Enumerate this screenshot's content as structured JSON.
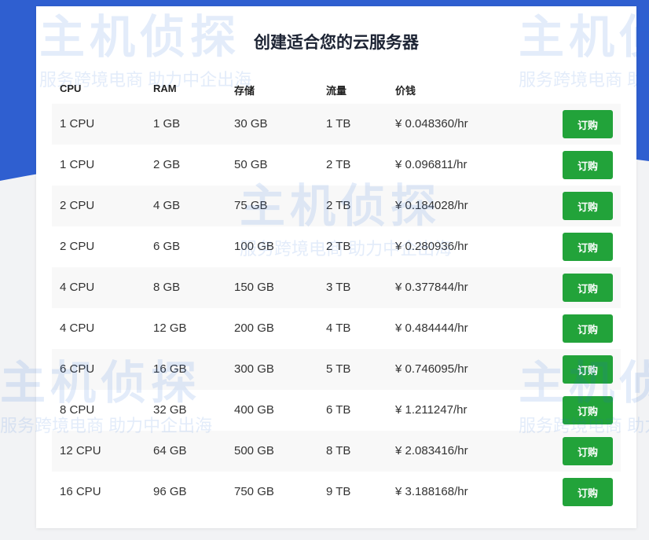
{
  "page": {
    "title": "创建适合您的云服务器"
  },
  "watermark": {
    "brand": "主机侦探",
    "slogan": "服务跨境电商 助力中企出海"
  },
  "colors": {
    "header_bg": "#2f5fd0",
    "button": "#22a33a",
    "row_alt": "#f8f8f8"
  },
  "table": {
    "headers": [
      "CPU",
      "RAM",
      "存储",
      "流量",
      "价钱"
    ],
    "rows": [
      {
        "cpu": "1 CPU",
        "ram": "1 GB",
        "storage": "30 GB",
        "traffic": "1 TB",
        "price": "¥ 0.048360/hr",
        "action": "订购"
      },
      {
        "cpu": "1 CPU",
        "ram": "2 GB",
        "storage": "50 GB",
        "traffic": "2 TB",
        "price": "¥ 0.096811/hr",
        "action": "订购"
      },
      {
        "cpu": "2 CPU",
        "ram": "4 GB",
        "storage": "75 GB",
        "traffic": "2 TB",
        "price": "¥ 0.184028/hr",
        "action": "订购"
      },
      {
        "cpu": "2 CPU",
        "ram": "6 GB",
        "storage": "100 GB",
        "traffic": "2 TB",
        "price": "¥ 0.280936/hr",
        "action": "订购"
      },
      {
        "cpu": "4 CPU",
        "ram": "8 GB",
        "storage": "150 GB",
        "traffic": "3 TB",
        "price": "¥ 0.377844/hr",
        "action": "订购"
      },
      {
        "cpu": "4 CPU",
        "ram": "12 GB",
        "storage": "200 GB",
        "traffic": "4 TB",
        "price": "¥ 0.484444/hr",
        "action": "订购"
      },
      {
        "cpu": "6 CPU",
        "ram": "16 GB",
        "storage": "300 GB",
        "traffic": "5 TB",
        "price": "¥ 0.746095/hr",
        "action": "订购"
      },
      {
        "cpu": "8 CPU",
        "ram": "32 GB",
        "storage": "400 GB",
        "traffic": "6 TB",
        "price": "¥ 1.211247/hr",
        "action": "订购"
      },
      {
        "cpu": "12 CPU",
        "ram": "64 GB",
        "storage": "500 GB",
        "traffic": "8 TB",
        "price": "¥ 2.083416/hr",
        "action": "订购"
      },
      {
        "cpu": "16 CPU",
        "ram": "96 GB",
        "storage": "750 GB",
        "traffic": "9 TB",
        "price": "¥ 3.188168/hr",
        "action": "订购"
      }
    ]
  }
}
